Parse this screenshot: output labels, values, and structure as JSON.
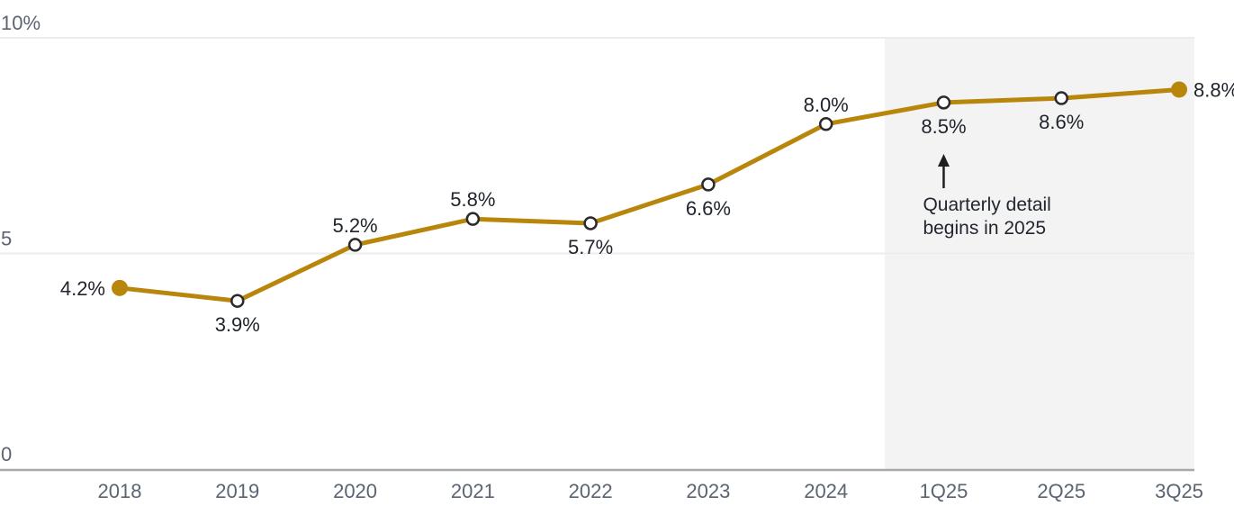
{
  "chart_data": {
    "type": "line",
    "title": "",
    "categories": [
      "2018",
      "2019",
      "2020",
      "2021",
      "2022",
      "2023",
      "2024",
      "1Q25",
      "2Q25",
      "3Q25"
    ],
    "values": [
      4.2,
      3.9,
      5.2,
      5.8,
      5.7,
      6.6,
      8.0,
      8.5,
      8.6,
      8.8
    ],
    "point_labels": [
      "4.2%",
      "3.9%",
      "5.2%",
      "5.8%",
      "5.7%",
      "6.6%",
      "8.0%",
      "8.5%",
      "8.6%",
      "8.8%"
    ],
    "label_positions": [
      "left",
      "below",
      "above",
      "above",
      "below",
      "below",
      "above",
      "below",
      "below",
      "right"
    ],
    "marker_styles": [
      "filled",
      "open",
      "open",
      "open",
      "open",
      "open",
      "open",
      "open",
      "open",
      "filled"
    ],
    "y_ticks": [
      {
        "label": "10%",
        "value": 10
      },
      {
        "label": "5",
        "value": 5
      },
      {
        "label": "0",
        "value": 0
      }
    ],
    "ylim": [
      0,
      10
    ],
    "grid": "horizontal",
    "legend": "none",
    "xlabel": "",
    "ylabel": "",
    "highlight_region": {
      "from_category_boundary": "between 2024 and 1Q25",
      "to": "right edge of plot",
      "color": "#f3f3f3"
    },
    "annotation": {
      "lines": [
        "Quarterly detail",
        "begins in 2025"
      ],
      "arrow_icon": "up-arrow",
      "target_category": "1Q25"
    }
  },
  "colors": {
    "series_line": "#B8860B",
    "marker_open_stroke": "#2b2b2b",
    "marker_open_fill": "#ffffff",
    "gridline": "#ececec",
    "axis_line": "#a8a8a8",
    "tick_text": "#5b6472",
    "label_text": "#1f242d",
    "highlight": "#f3f3f3",
    "background": "#ffffff",
    "arrow": "#1f1f1f"
  }
}
